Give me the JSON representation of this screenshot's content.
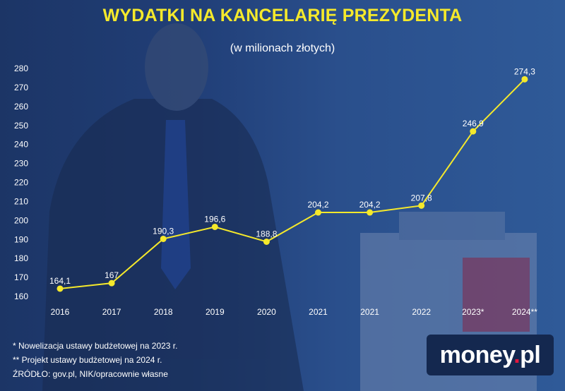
{
  "header": {
    "title": "WYDATKI NA KANCELARIĘ PREZYDENTA",
    "subtitle": "(w milionach złotych)"
  },
  "chart_data": {
    "type": "line",
    "title": "WYDATKI NA KANCELARIĘ PREZYDENTA",
    "subtitle": "(w milionach złotych)",
    "categories": [
      "2016",
      "2017",
      "2018",
      "2019",
      "2020",
      "2021",
      "2021",
      "2022",
      "2023*",
      "2024**"
    ],
    "series": [
      {
        "values": [
          164.1,
          167,
          190.3,
          196.6,
          188.8,
          204.2,
          204.2,
          207.8,
          246.9,
          274.3
        ],
        "labels": [
          "164,1",
          "167",
          "190,3",
          "196,6",
          "188,8",
          "204,2",
          "204,2",
          "207,8",
          "246,9",
          "274,3"
        ]
      }
    ],
    "yticks": [
      160,
      170,
      180,
      190,
      200,
      210,
      220,
      230,
      240,
      250,
      260,
      270,
      280
    ],
    "ylim": [
      160,
      280
    ],
    "grid": false,
    "line_color": "#f5e92b",
    "marker_color": "#f5e92b"
  },
  "footnotes": {
    "note1": "*  Nowelizacja ustawy budżetowej na 2023 r.",
    "note2": "** Projekt ustawy budżetowej na 2024 r.",
    "source": "ŹRÓDŁO: gov.pl, NIK/opracownie własne"
  },
  "logo": {
    "brand": "money",
    "dot": ".",
    "suffix": "pl",
    "dot_color": "#e4173d"
  }
}
